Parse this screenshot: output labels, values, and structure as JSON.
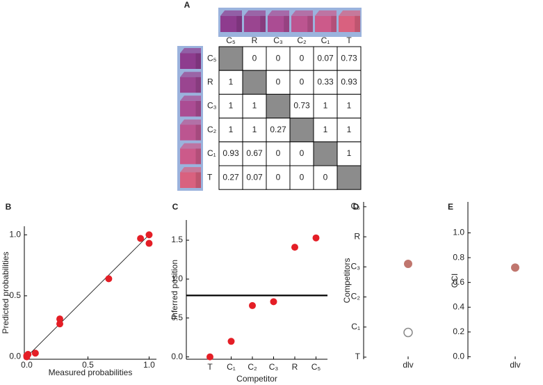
{
  "chart_data": [
    {
      "type": "matrix",
      "panel": "A",
      "columns": [
        "C₅",
        "R",
        "C₃",
        "C₂",
        "C₁",
        "T"
      ],
      "rows": [
        "C₅",
        "R",
        "C₃",
        "C₂",
        "C₁",
        "T"
      ],
      "values": [
        [
          null,
          0,
          0,
          0,
          0.07,
          0.73
        ],
        [
          1,
          null,
          0,
          0,
          0.33,
          0.93
        ],
        [
          1,
          1,
          null,
          0.73,
          1,
          1
        ],
        [
          1,
          1,
          0.27,
          null,
          1,
          1
        ],
        [
          0.93,
          0.67,
          0,
          0,
          null,
          1
        ],
        [
          0.27,
          0.07,
          0,
          0,
          0,
          null
        ]
      ]
    },
    {
      "type": "scatter",
      "panel": "B",
      "xlabel": "Measured probabilities",
      "ylabel": "Predicted probabilities",
      "x": [
        0,
        0,
        0.01,
        0.07,
        0.27,
        0.27,
        0.67,
        0.93,
        1,
        1
      ],
      "y": [
        0,
        0.01,
        0.02,
        0.03,
        0.27,
        0.31,
        0.64,
        0.97,
        1.0,
        0.93
      ],
      "color": "#e41e26",
      "identity_line": true,
      "xlim": [
        -0.02,
        1.06
      ],
      "ylim": [
        -0.02,
        1.07
      ],
      "xticks": [
        {
          "value": 0,
          "label": "0.0"
        },
        {
          "value": 0.5,
          "label": "0.5"
        },
        {
          "value": 1,
          "label": "1.0"
        }
      ],
      "yticks": [
        {
          "value": 0,
          "label": "0.0"
        },
        {
          "value": 0.5,
          "label": "0.5"
        },
        {
          "value": 1,
          "label": "1.0"
        }
      ]
    },
    {
      "type": "dot",
      "panel": "C",
      "xlabel": "Competitor",
      "ylabel": "Inferred position",
      "categories": [
        "T",
        "C₁",
        "C₂",
        "C₃",
        "R",
        "C₅"
      ],
      "values": [
        0,
        0.2,
        0.66,
        0.71,
        1.41,
        1.53
      ],
      "color": "#e41e26",
      "reference_line": 0.79,
      "ylim": [
        -0.03,
        1.76
      ],
      "yticks": [
        {
          "value": 0,
          "label": "0.0"
        },
        {
          "value": 0.5,
          "label": "0.5"
        },
        {
          "value": 1,
          "label": "1.0"
        },
        {
          "value": 1.5,
          "label": "1.5"
        }
      ]
    },
    {
      "type": "strip",
      "panel": "D",
      "ylabel": "Competitors",
      "categories": [
        "dlv"
      ],
      "series": [
        {
          "values": [
            3.1
          ],
          "color": "#c0766e",
          "filled": true
        },
        {
          "values": [
            0.82
          ],
          "color": "#8a8a8a",
          "filled": false
        }
      ],
      "ylim": [
        -0.07,
        5.16
      ],
      "yticks": [
        {
          "value": 0,
          "label": "T"
        },
        {
          "value": 1,
          "label": "C₁"
        },
        {
          "value": 2,
          "label": "C₂"
        },
        {
          "value": 3,
          "label": "C₃"
        },
        {
          "value": 4,
          "label": "R"
        },
        {
          "value": 5,
          "label": "C₅"
        }
      ]
    },
    {
      "type": "strip",
      "panel": "E",
      "ylabel": "CCI",
      "categories": [
        "dlv"
      ],
      "series": [
        {
          "values": [
            0.72
          ],
          "color": "#c0766e",
          "filled": true
        }
      ],
      "ylim": [
        -0.02,
        1.25
      ],
      "yticks": [
        {
          "value": 0,
          "label": "0.0"
        },
        {
          "value": 0.2,
          "label": "0.2"
        },
        {
          "value": 0.4,
          "label": "0.4"
        },
        {
          "value": 0.6,
          "label": "0.6"
        },
        {
          "value": 0.8,
          "label": "0.8"
        },
        {
          "value": 1,
          "label": "1.0"
        }
      ]
    }
  ]
}
